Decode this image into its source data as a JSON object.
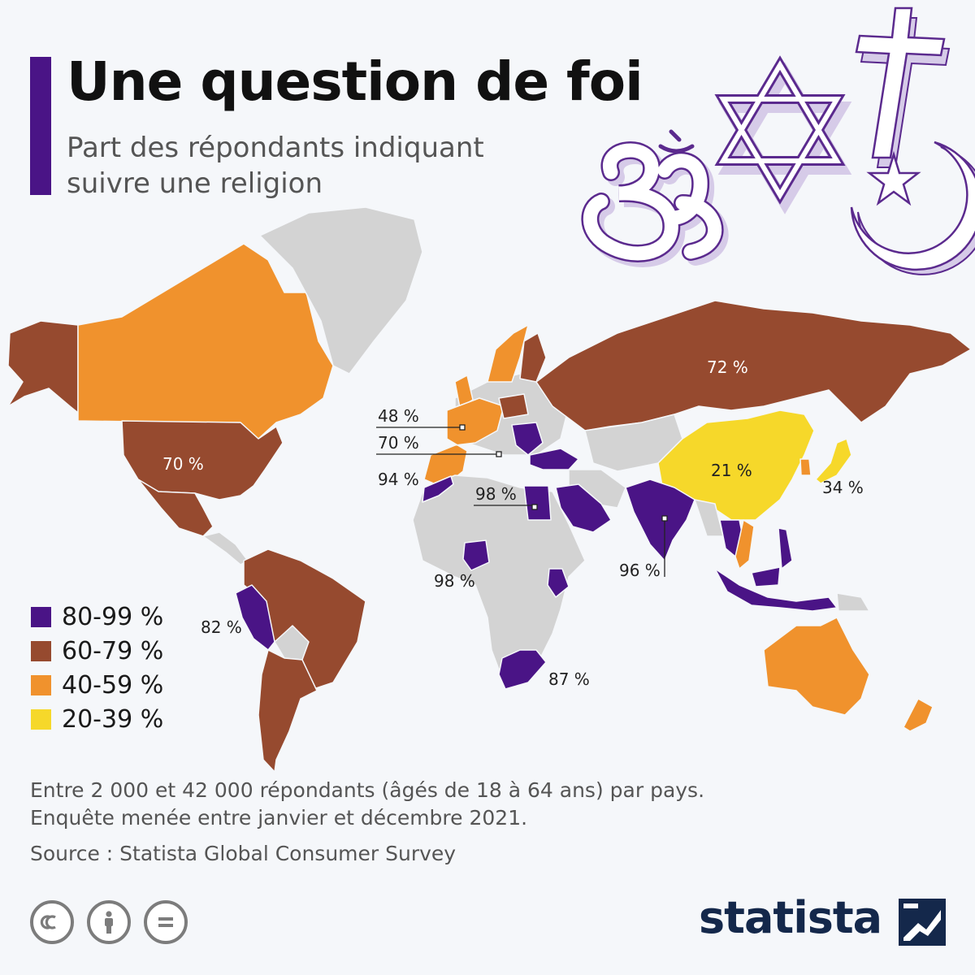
{
  "title": "Une question de foi",
  "subtitle": "Part des répondants indiquant suivre une religion",
  "colors": {
    "accent": "#4a1486",
    "c80_99": "#4a1486",
    "c60_79": "#964a2f",
    "c40_59": "#f0922d",
    "c20_39": "#f6d82a",
    "no_data": "#d3d3d3",
    "symbol_fill": "#d6cbe8",
    "symbol_stroke": "#5b2a8e",
    "brand": "#14284b"
  },
  "legend": [
    {
      "label": "80-99 %",
      "color": "#4a1486"
    },
    {
      "label": "60-79 %",
      "color": "#964a2f"
    },
    {
      "label": "40-59 %",
      "color": "#f0922d"
    },
    {
      "label": "20-39 %",
      "color": "#f6d82a"
    }
  ],
  "map_labels": {
    "russia": "72 %",
    "usa": "70 %",
    "china": "21 %",
    "japan": "34 %",
    "france": "48 %",
    "italy": "70 %",
    "morocco": "94 %",
    "egypt": "98 %",
    "nigeria": "98 %",
    "india": "96 %",
    "peru": "82 %",
    "south_africa": "87 %"
  },
  "icons": [
    "om-symbol-icon",
    "star-of-david-icon",
    "cross-icon",
    "crescent-star-icon"
  ],
  "notes": [
    "Entre 2 000 et 42 000 répondants (âgés de 18 à 64 ans) par pays.",
    "Enquête menée entre janvier et décembre 2021."
  ],
  "source": "Source : Statista Global Consumer Survey",
  "brand": "statista"
}
